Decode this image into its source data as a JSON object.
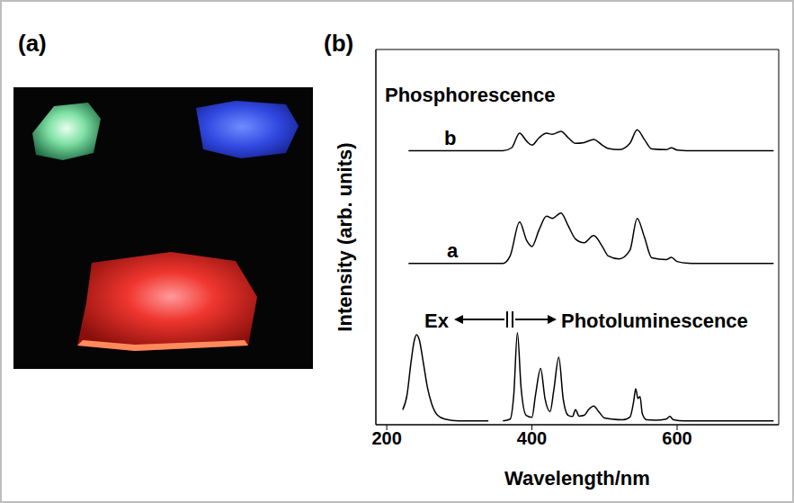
{
  "figure": {
    "panel_labels": [
      "(a)",
      "(b)"
    ]
  },
  "chart_data": {
    "type": "line",
    "title": "Phosphorescence",
    "x_label": "Wavelength/nm",
    "y_label": "Intensity (arb. units)",
    "color": "#000000",
    "xlim": [
      185,
      740
    ],
    "xticks": [
      200,
      400,
      600
    ],
    "ylim": [
      0,
      100
    ],
    "tick_labels": "x",
    "grid": false,
    "series": [
      {
        "name": "b",
        "x": [
          230,
          360,
          372,
          383,
          393,
          400,
          410,
          420,
          428,
          440,
          450,
          460,
          472,
          485,
          497,
          505,
          520,
          535,
          545,
          555,
          565,
          585,
          592,
          600,
          620,
          680,
          733
        ],
        "values": [
          73,
          73,
          73.8,
          77.7,
          75.5,
          74.5,
          76.5,
          77.7,
          77.4,
          78.2,
          76.5,
          75,
          75.2,
          76,
          74.5,
          73.6,
          73.3,
          75,
          78.6,
          76,
          73.5,
          73.3,
          73.8,
          73.2,
          73,
          73,
          73
        ]
      },
      {
        "name": "a",
        "x": [
          230,
          360,
          370,
          383,
          393,
          400,
          410,
          420,
          428,
          440,
          450,
          460,
          472,
          485,
          497,
          505,
          520,
          535,
          545,
          555,
          565,
          585,
          592,
          600,
          620,
          680,
          733
        ],
        "values": [
          43,
          43,
          45,
          54,
          49,
          47.5,
          52,
          55.6,
          55,
          56.4,
          53,
          49.5,
          48.5,
          50.4,
          47.5,
          45,
          44.2,
          46.5,
          55,
          50,
          44.5,
          44,
          44.6,
          43.5,
          43,
          43,
          43
        ]
      },
      {
        "name": "Ex",
        "x": [
          222,
          228,
          233,
          238,
          241,
          245,
          250,
          256,
          262,
          270,
          280,
          300,
          340
        ],
        "values": [
          4,
          8,
          16,
          22.5,
          24,
          22.5,
          17,
          10,
          5.5,
          2.5,
          1.5,
          1,
          1
        ]
      },
      {
        "name": "Photoluminescence",
        "x": [
          360,
          370,
          375,
          380,
          385,
          392,
          400,
          405,
          412,
          418,
          425,
          430,
          437,
          443,
          450,
          456,
          460,
          465,
          472,
          478,
          485,
          492,
          500,
          510,
          525,
          535,
          540,
          543,
          546,
          549,
          552,
          558,
          570,
          585,
          590,
          595,
          610,
          680,
          733
        ],
        "values": [
          1,
          1.5,
          8,
          24.5,
          10,
          2.5,
          2,
          8,
          15,
          7,
          3.5,
          9,
          18,
          7,
          2.5,
          2.2,
          4,
          2.3,
          2.5,
          4,
          5,
          3.5,
          1.8,
          1.5,
          1.3,
          2,
          6,
          9.6,
          7,
          7.5,
          3,
          1.3,
          1.2,
          1.5,
          2.2,
          1.3,
          1,
          1,
          1
        ]
      }
    ]
  }
}
